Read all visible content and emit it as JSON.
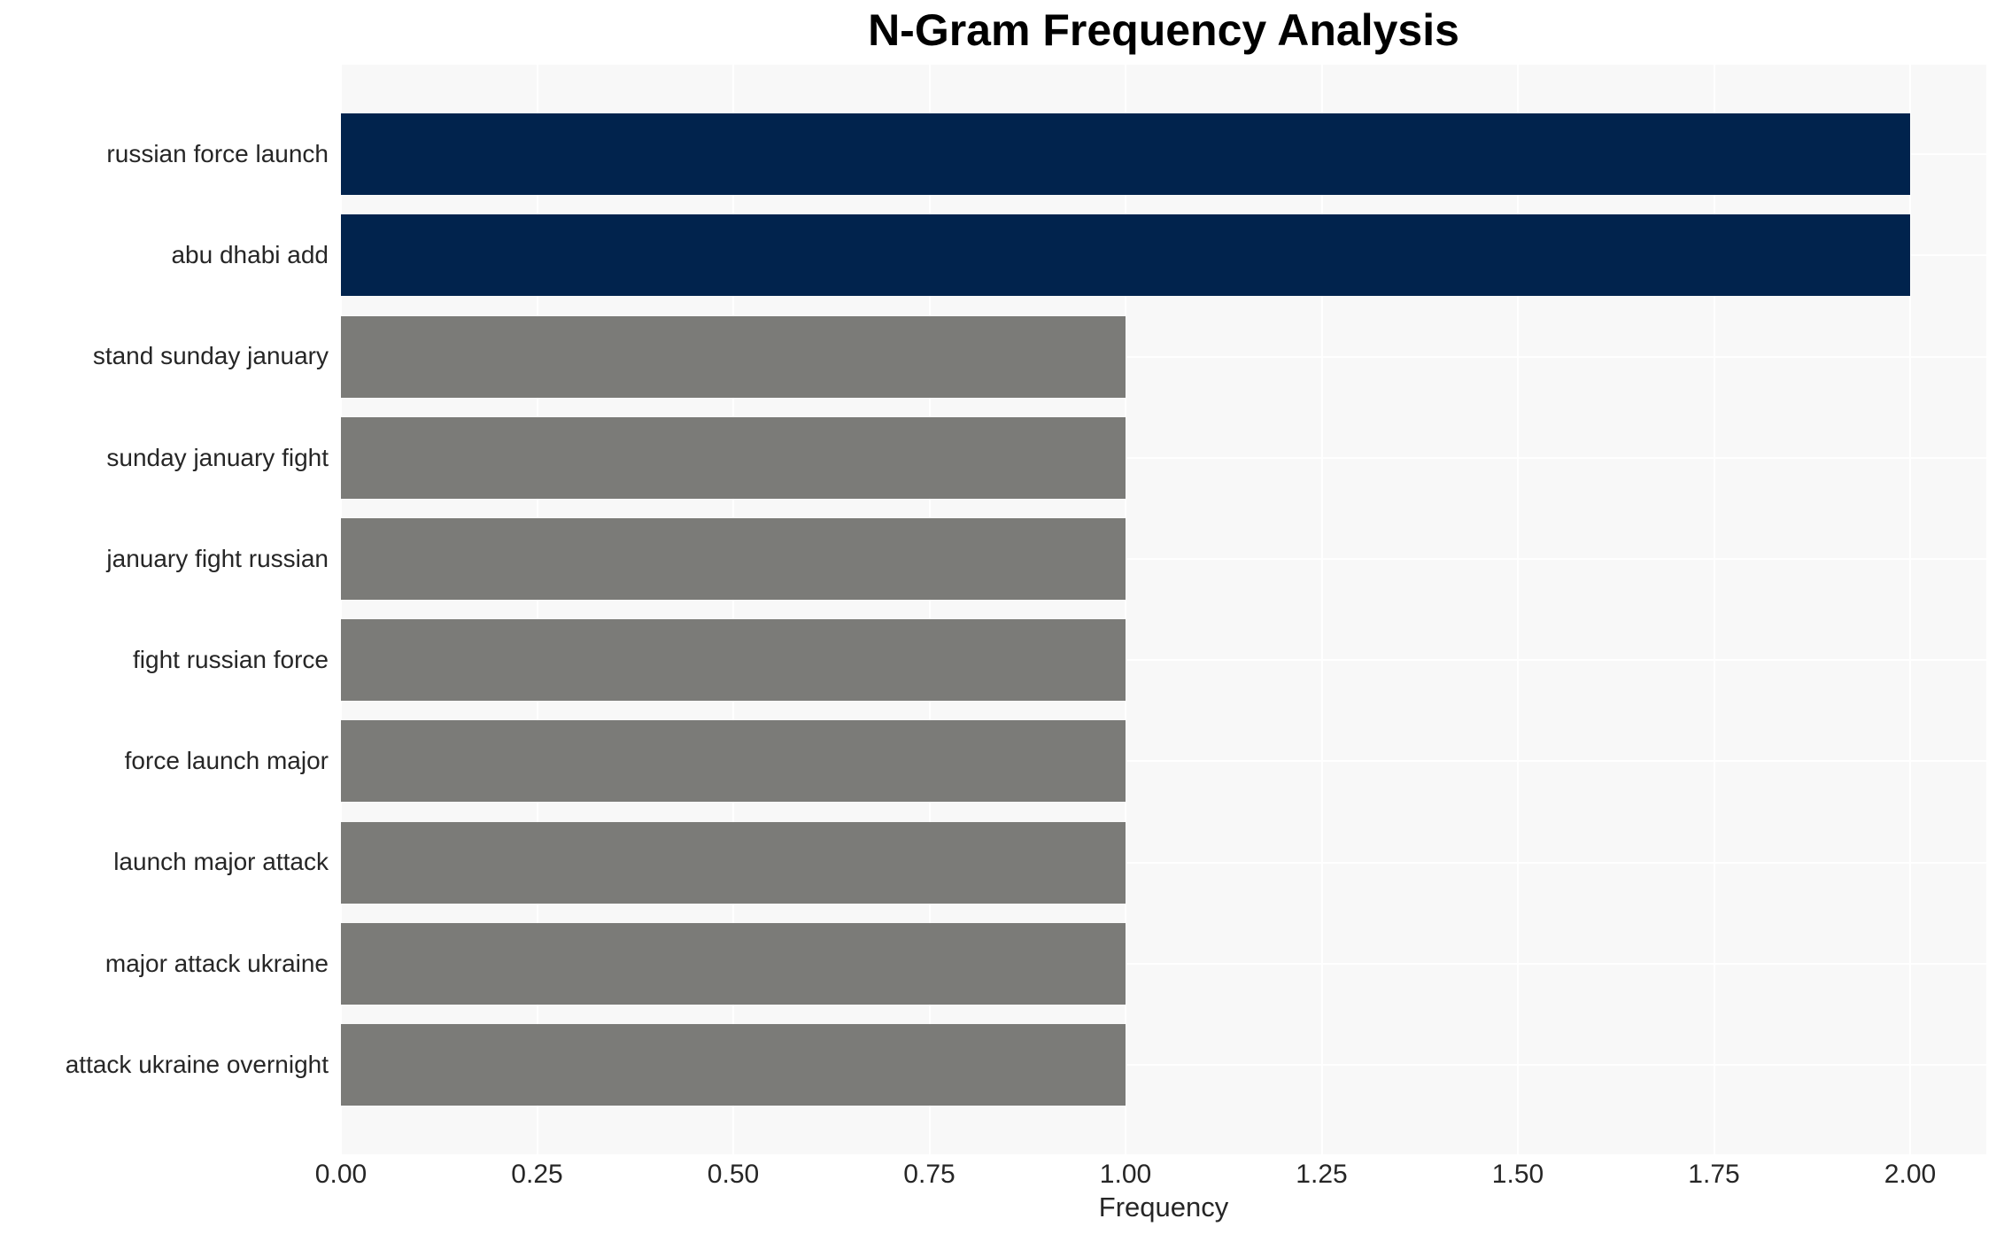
{
  "chart_data": {
    "type": "bar",
    "orientation": "horizontal",
    "title": "N-Gram Frequency Analysis",
    "xlabel": "Frequency",
    "ylabel": "",
    "categories": [
      "russian force launch",
      "abu dhabi add",
      "stand sunday january",
      "sunday january fight",
      "january fight russian",
      "fight russian force",
      "force launch major",
      "launch major attack",
      "major attack ukraine",
      "attack ukraine overnight"
    ],
    "values": [
      2,
      2,
      1,
      1,
      1,
      1,
      1,
      1,
      1,
      1
    ],
    "xlim": [
      0,
      2.097
    ],
    "xticks": [
      {
        "v": 0,
        "label": "0.00"
      },
      {
        "v": 0.25,
        "label": "0.25"
      },
      {
        "v": 0.5,
        "label": "0.50"
      },
      {
        "v": 0.75,
        "label": "0.75"
      },
      {
        "v": 1,
        "label": "1.00"
      },
      {
        "v": 1.25,
        "label": "1.25"
      },
      {
        "v": 1.5,
        "label": "1.50"
      },
      {
        "v": 1.75,
        "label": "1.75"
      },
      {
        "v": 2,
        "label": "2.00"
      }
    ],
    "grid": true,
    "legend": false,
    "colors": {
      "bar_highlight": "#01234d",
      "bar_default": "#7b7b78",
      "plot_background": "#f8f8f8",
      "grid_line": "#ffffff",
      "tick_text": "#262626",
      "title_text": "#000000"
    }
  }
}
